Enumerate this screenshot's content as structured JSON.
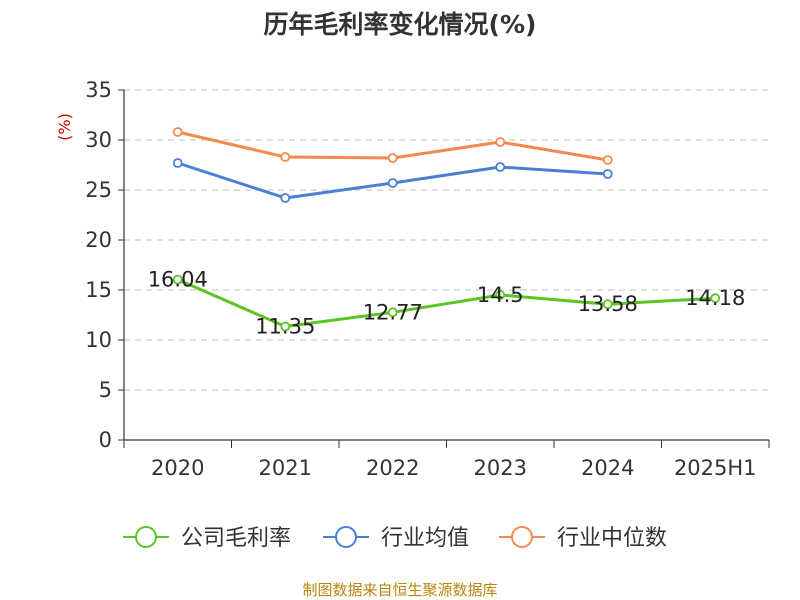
{
  "chart_data": {
    "type": "line",
    "title": "历年毛利率变化情况(%)",
    "ylabel": "(%)",
    "xlabel": "",
    "categories": [
      "2020",
      "2021",
      "2022",
      "2023",
      "2024",
      "2025H1"
    ],
    "y_ticks": [
      "0",
      "5",
      "10",
      "15",
      "20",
      "25",
      "30",
      "35"
    ],
    "ylim": [
      0,
      35
    ],
    "grid": true,
    "legend_position": "bottom",
    "series": [
      {
        "name": "公司毛利率",
        "color": "#5cc424",
        "values": [
          16.04,
          11.35,
          12.77,
          14.5,
          13.58,
          14.18
        ],
        "labels": [
          "16.04",
          "11.35",
          "12.77",
          "14.5",
          "13.58",
          "14.18"
        ]
      },
      {
        "name": "行业均值",
        "color": "#4a7fd6",
        "values": [
          27.7,
          24.2,
          25.7,
          27.3,
          26.6,
          null
        ]
      },
      {
        "name": "行业中位数",
        "color": "#f5894f",
        "values": [
          30.8,
          28.3,
          28.2,
          29.8,
          28.0,
          null
        ]
      }
    ]
  },
  "source_text": "制图数据来自恒生聚源数据库"
}
